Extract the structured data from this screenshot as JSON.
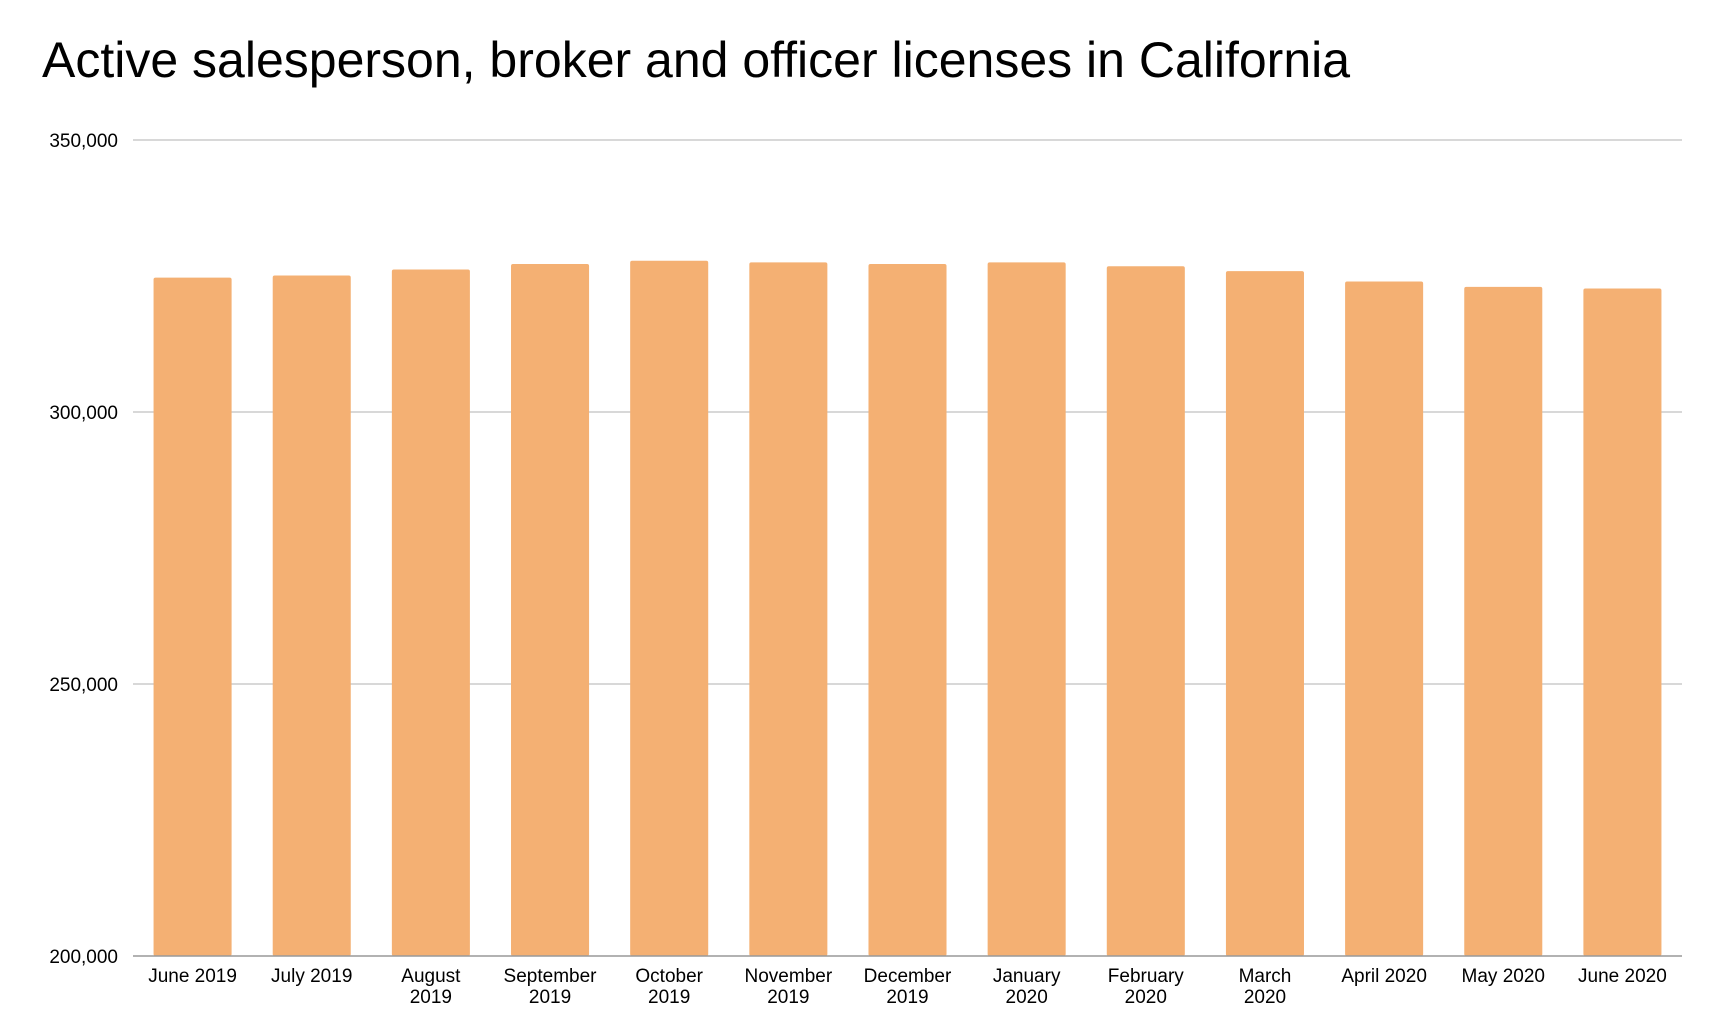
{
  "chart_data": {
    "type": "bar",
    "title": "Active salesperson, broker and officer licenses in California",
    "xlabel": "",
    "ylabel": "",
    "categories": [
      [
        "June 2019"
      ],
      [
        "July 2019"
      ],
      [
        "August",
        "2019"
      ],
      [
        "September",
        "2019"
      ],
      [
        "October",
        "2019"
      ],
      [
        "November",
        "2019"
      ],
      [
        "December",
        "2019"
      ],
      [
        "January",
        "2020"
      ],
      [
        "February",
        "2020"
      ],
      [
        "March",
        "2020"
      ],
      [
        "April 2020"
      ],
      [
        "May 2020"
      ],
      [
        "June 2020"
      ]
    ],
    "values": [
      324700,
      325100,
      326200,
      327200,
      327800,
      327500,
      327200,
      327500,
      326800,
      325900,
      324000,
      323000,
      322700
    ],
    "ylim": [
      200000,
      350000
    ],
    "yticks": [
      200000,
      250000,
      300000,
      350000
    ],
    "ytick_labels": [
      "200,000",
      "250,000",
      "300,000",
      "350,000"
    ],
    "grid": true,
    "legend": "none",
    "bar_color": "#F4B073",
    "grid_color": "#CCCCCC"
  }
}
